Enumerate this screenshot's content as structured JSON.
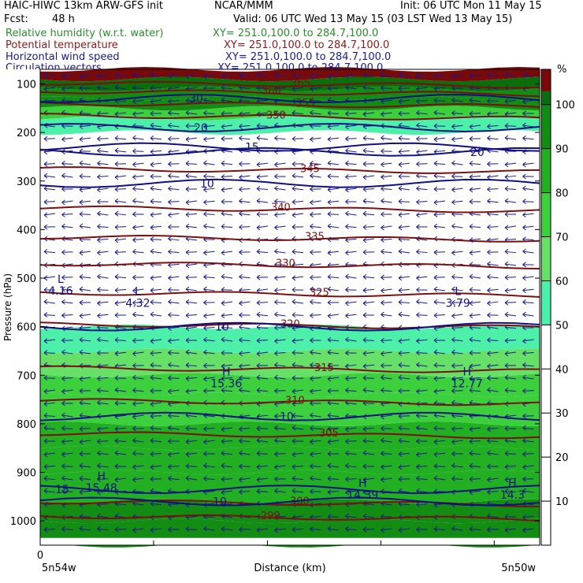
{
  "header": {
    "title": "HAIC-HIWC 13km ARW-GFS init",
    "center": "NCAR/MMM",
    "init": "Init: 06 UTC Mon 11 May 15",
    "fcst_label": "Fcst:",
    "fcst_value": "48 h",
    "valid": "Valid: 06 UTC Wed 13 May 15 (03 LST Wed 13 May 15)",
    "fields": [
      {
        "name": "Relative humidity (w.r.t. water)",
        "xy": "XY= 251.0,100.0 to 284.7,100.0",
        "color": "#2e8b2e"
      },
      {
        "name": "Potential temperature",
        "xy": "XY= 251.0,100.0 to 284.7,100.0",
        "color": "#8b1a1a"
      },
      {
        "name": "Horizontal wind speed",
        "xy": "XY= 251.0,100.0 to 284.7,100.0",
        "color": "#1a1a8b"
      },
      {
        "name": "Circulation vectors",
        "xy": "XY= 251.0,100.0 to 284.7,100.0",
        "color": "#1a1a8b"
      }
    ]
  },
  "chart_data": {
    "type": "heatmap",
    "xlabel": "Distance (km)",
    "ylabel": "Pressure (hPa)",
    "x_ticks": [
      "0"
    ],
    "x_endpoints": [
      "5n54w",
      "5n50w"
    ],
    "y_ticks": [
      100,
      200,
      300,
      400,
      500,
      600,
      700,
      800,
      900,
      1000
    ],
    "ylim": [
      1050,
      70
    ],
    "colorbar": {
      "unit": "%",
      "levels": [
        10,
        20,
        30,
        40,
        50,
        60,
        70,
        80,
        90,
        100
      ],
      "colors": [
        "#ffffff",
        "#4cf0a8",
        "#66e066",
        "#3cd03c",
        "#22b022",
        "#128c12",
        "#0a6e0a",
        "#7a0a0a",
        "#f08080"
      ],
      "bounds": [
        0,
        50,
        60,
        70,
        80,
        90,
        100,
        103,
        108
      ]
    },
    "rh_fill": [
      {
        "p": 1050,
        "rh": 95
      },
      {
        "p": 1000,
        "rh": 95
      },
      {
        "p": 960,
        "rh": 88
      },
      {
        "p": 900,
        "rh": 88
      },
      {
        "p": 850,
        "rh": 88
      },
      {
        "p": 800,
        "rh": 82
      },
      {
        "p": 740,
        "rh": 75
      },
      {
        "p": 700,
        "rh": 65
      },
      {
        "p": 650,
        "rh": 60
      },
      {
        "p": 600,
        "rh": 52
      },
      {
        "p": 560,
        "rh": 35
      },
      {
        "p": 500,
        "rh": 10
      },
      {
        "p": 400,
        "rh": 8
      },
      {
        "p": 300,
        "rh": 10
      },
      {
        "p": 240,
        "rh": 20
      },
      {
        "p": 200,
        "rh": 45
      },
      {
        "p": 170,
        "rh": 55
      },
      {
        "p": 150,
        "rh": 92
      },
      {
        "p": 130,
        "rh": 98
      },
      {
        "p": 110,
        "rh": 101
      },
      {
        "p": 90,
        "rh": 104
      },
      {
        "p": 70,
        "rh": 104
      }
    ],
    "theta_contours": [
      {
        "value": 299,
        "p": 990,
        "label": "299"
      },
      {
        "value": 300,
        "p": 960,
        "label": "300"
      },
      {
        "value": 305,
        "p": 820,
        "label": "305"
      },
      {
        "value": 310,
        "p": 752,
        "label": "310"
      },
      {
        "value": 315,
        "p": 685,
        "label": "315"
      },
      {
        "value": 320,
        "p": 595,
        "label": "320"
      },
      {
        "value": 325,
        "p": 530,
        "label": "325"
      },
      {
        "value": 330,
        "p": 470,
        "label": "330"
      },
      {
        "value": 335,
        "p": 415,
        "label": "335"
      },
      {
        "value": 340,
        "p": 355,
        "label": "340"
      },
      {
        "value": 345,
        "p": 275,
        "label": "345"
      },
      {
        "value": 350,
        "p": 165,
        "label": "350"
      },
      {
        "value": 355,
        "p": 140,
        "label": "355"
      },
      {
        "value": 360,
        "p": 115,
        "label": "360"
      },
      {
        "value": 365,
        "p": 98,
        "label": "365"
      }
    ],
    "wind_contours": [
      {
        "value": 10,
        "p": 600,
        "label": "10"
      },
      {
        "value": 10,
        "p": 785,
        "label": "10"
      },
      {
        "value": 10,
        "p": 960,
        "label": "10"
      },
      {
        "value": 15,
        "p": 935,
        "label": "15"
      },
      {
        "value": 10,
        "p": 305,
        "label": "10"
      },
      {
        "value": 15,
        "p": 230,
        "label": "15"
      },
      {
        "value": 20,
        "p": 190,
        "label": "20"
      },
      {
        "value": 20,
        "p": 240,
        "label": "20"
      },
      {
        "value": 30,
        "p": 130,
        "label": "30"
      }
    ],
    "highs_lows": [
      {
        "type": "L",
        "x_frac": 0.09,
        "p": 510,
        "value": "4.16"
      },
      {
        "type": "L",
        "x_frac": 0.43,
        "p": 535,
        "value": "4.32"
      },
      {
        "type": "L",
        "x_frac": 1.84,
        "p": 535,
        "value": "3.79"
      },
      {
        "type": "H",
        "x_frac": 0.82,
        "p": 700,
        "value": "15.36"
      },
      {
        "type": "H",
        "x_frac": 1.88,
        "p": 700,
        "value": "12.77"
      },
      {
        "type": "H",
        "x_frac": 0.27,
        "p": 915,
        "value": "15.48"
      },
      {
        "type": "H",
        "x_frac": 1.42,
        "p": 930,
        "value": "14.39"
      },
      {
        "type": "H",
        "x_frac": 2.08,
        "p": 930,
        "value": "14.3"
      }
    ]
  }
}
